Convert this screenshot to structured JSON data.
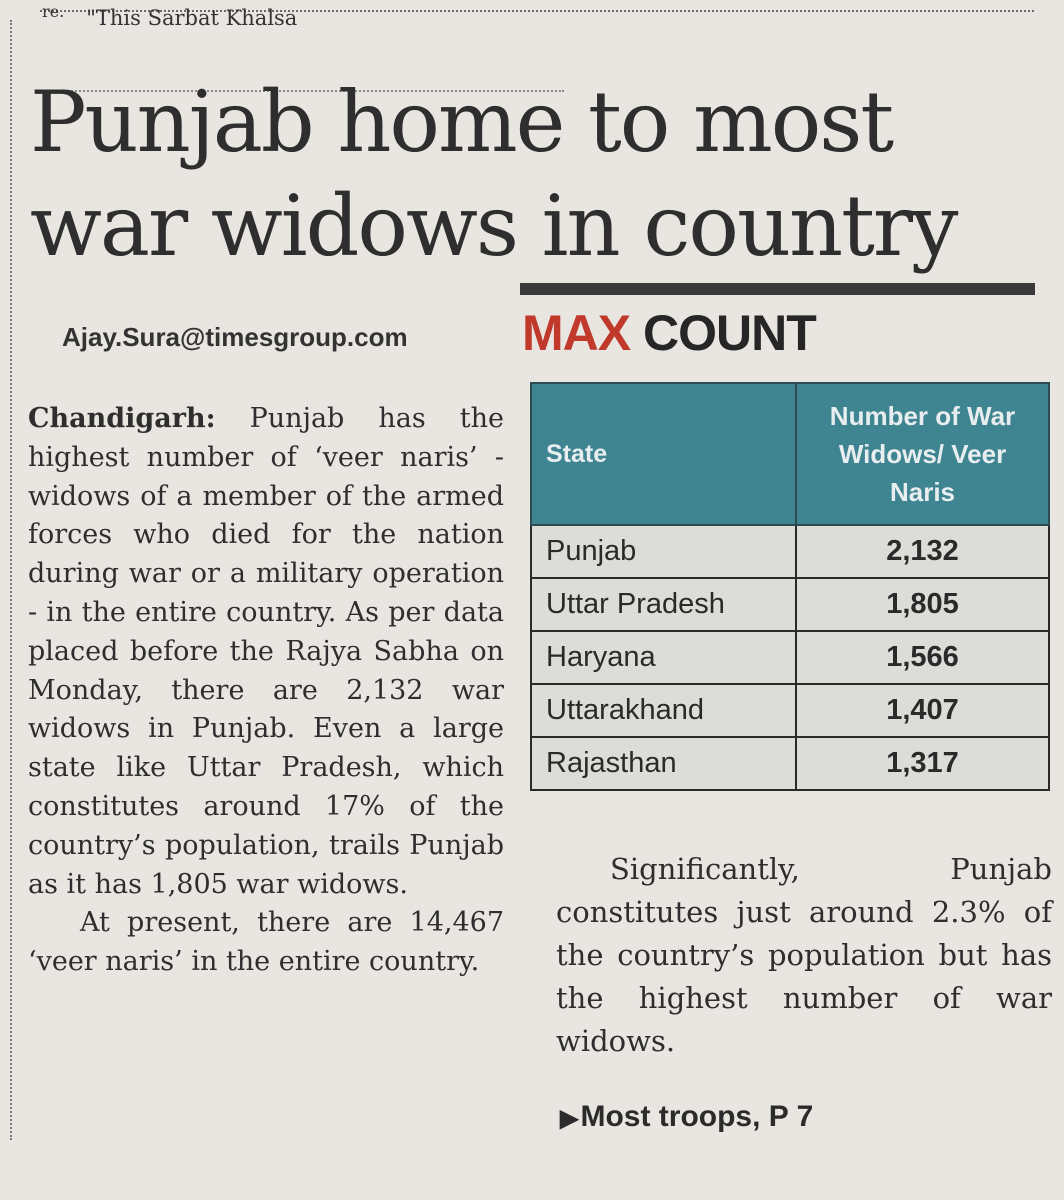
{
  "clipping": {
    "top_fragment_prefix": "re.",
    "top_fragment": "\"This Sarbat Khalsa",
    "headline": "Punjab home to most war widows in country",
    "byline": "Ajay.Sura@timesgroup.com",
    "body": {
      "dateline": "Chandigarh:",
      "para1": "Punjab has the highest number of ‘veer naris’ - widows of a member of the armed forces who died for the nation during war or a military operation - in the entire country. As per data placed before the Rajya Sabha on Monday, there are 2,132 war widows in Punjab. Even a large state like Uttar Pradesh, which constitutes around 17% of the country’s population, trails Punjab as it has 1,805 war widows.",
      "para2": "At present, there are 14,467 ‘veer naris’ in the entire country.",
      "para3": "Significantly, Punjab constitutes just around 2.3% of the country’s population but has the highest number of war widows."
    },
    "infobox": {
      "title_highlight": "MAX",
      "title_rest": "COUNT",
      "header_state": "State",
      "header_count": "Number of War Widows/ Veer Naris",
      "rows": [
        {
          "state": "Punjab",
          "count": "2,132"
        },
        {
          "state": "Uttar Pradesh",
          "count": "1,805"
        },
        {
          "state": "Haryana",
          "count": "1,566"
        },
        {
          "state": "Uttarakhand",
          "count": "1,407"
        },
        {
          "state": "Rajasthan",
          "count": "1,317"
        }
      ],
      "accent_color": "#c0392b",
      "header_color": "#3f8591"
    },
    "continuation": "Most troops, P 7",
    "continuation_icon": "triangle-right-icon"
  }
}
